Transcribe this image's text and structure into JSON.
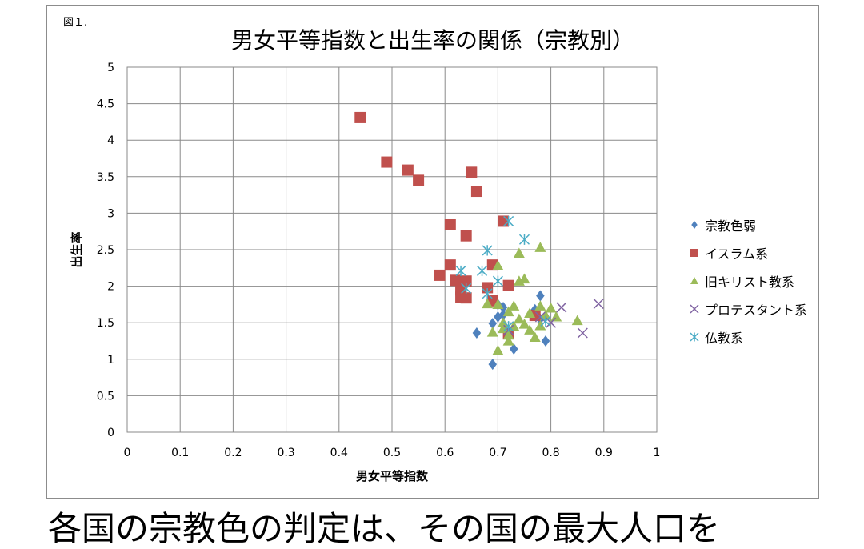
{
  "figure_label": "図１.",
  "caption": "各国の宗教色の判定は、その国の最大人口を",
  "chart_data": {
    "type": "scatter",
    "title": "男女平等指数と出生率の関係（宗教別）",
    "xlabel": "男女平等指数",
    "ylabel": "出生率",
    "xlim": [
      0,
      1
    ],
    "ylim": [
      0,
      5
    ],
    "xticks": [
      "0",
      "0.1",
      "0.2",
      "0.3",
      "0.4",
      "0.5",
      "0.6",
      "0.7",
      "0.8",
      "0.9",
      "1"
    ],
    "yticks": [
      "0",
      "0.5",
      "1",
      "1.5",
      "2",
      "2.5",
      "3",
      "3.5",
      "4",
      "4.5",
      "5"
    ],
    "grid": true,
    "legend_position": "right",
    "series": [
      {
        "name": "宗教色弱",
        "marker": "diamond",
        "color": "#4F81BD",
        "points": [
          [
            0.69,
            0.93
          ],
          [
            0.66,
            1.36
          ],
          [
            0.69,
            1.49
          ],
          [
            0.73,
            1.14
          ],
          [
            0.71,
            1.71
          ],
          [
            0.71,
            1.61
          ],
          [
            0.7,
            1.75
          ],
          [
            0.77,
            1.68
          ],
          [
            0.78,
            1.87
          ],
          [
            0.79,
            1.25
          ],
          [
            0.78,
            1.55
          ],
          [
            0.7,
            1.58
          ]
        ]
      },
      {
        "name": "イスラム系",
        "marker": "square",
        "color": "#C0504D",
        "points": [
          [
            0.44,
            4.31
          ],
          [
            0.49,
            3.7
          ],
          [
            0.53,
            3.59
          ],
          [
            0.55,
            3.45
          ],
          [
            0.65,
            3.56
          ],
          [
            0.66,
            3.3
          ],
          [
            0.71,
            2.89
          ],
          [
            0.61,
            2.84
          ],
          [
            0.64,
            2.69
          ],
          [
            0.69,
            2.29
          ],
          [
            0.61,
            2.29
          ],
          [
            0.59,
            2.15
          ],
          [
            0.62,
            2.08
          ],
          [
            0.64,
            2.07
          ],
          [
            0.72,
            2.01
          ],
          [
            0.68,
            1.98
          ],
          [
            0.63,
            1.95
          ],
          [
            0.63,
            1.85
          ],
          [
            0.64,
            1.84
          ],
          [
            0.69,
            1.8
          ],
          [
            0.77,
            1.6
          ],
          [
            0.72,
            1.35
          ]
        ]
      },
      {
        "name": "旧キリスト教系",
        "marker": "triangle",
        "color": "#9BBB59",
        "points": [
          [
            0.78,
            2.53
          ],
          [
            0.74,
            2.45
          ],
          [
            0.7,
            2.28
          ],
          [
            0.75,
            2.1
          ],
          [
            0.74,
            2.07
          ],
          [
            0.68,
            1.76
          ],
          [
            0.7,
            1.75
          ],
          [
            0.73,
            1.73
          ],
          [
            0.78,
            1.73
          ],
          [
            0.8,
            1.7
          ],
          [
            0.72,
            1.65
          ],
          [
            0.76,
            1.63
          ],
          [
            0.79,
            1.6
          ],
          [
            0.81,
            1.58
          ],
          [
            0.74,
            1.55
          ],
          [
            0.85,
            1.53
          ],
          [
            0.71,
            1.5
          ],
          [
            0.75,
            1.48
          ],
          [
            0.78,
            1.46
          ],
          [
            0.73,
            1.45
          ],
          [
            0.71,
            1.42
          ],
          [
            0.76,
            1.4
          ],
          [
            0.69,
            1.37
          ],
          [
            0.72,
            1.33
          ],
          [
            0.77,
            1.3
          ],
          [
            0.72,
            1.25
          ],
          [
            0.7,
            1.12
          ]
        ]
      },
      {
        "name": "プロテスタント系",
        "marker": "x",
        "color": "#8064A2",
        "points": [
          [
            0.89,
            1.76
          ],
          [
            0.82,
            1.71
          ],
          [
            0.86,
            1.36
          ],
          [
            0.8,
            1.5
          ],
          [
            0.78,
            1.58
          ],
          [
            0.72,
            1.4
          ]
        ]
      },
      {
        "name": "仏教系",
        "marker": "star",
        "color": "#4BACC6",
        "points": [
          [
            0.72,
            2.89
          ],
          [
            0.75,
            2.64
          ],
          [
            0.68,
            2.49
          ],
          [
            0.63,
            2.21
          ],
          [
            0.67,
            2.21
          ],
          [
            0.7,
            2.07
          ],
          [
            0.64,
            1.97
          ],
          [
            0.68,
            1.9
          ],
          [
            0.72,
            1.45
          ],
          [
            0.79,
            1.52
          ]
        ]
      }
    ]
  }
}
